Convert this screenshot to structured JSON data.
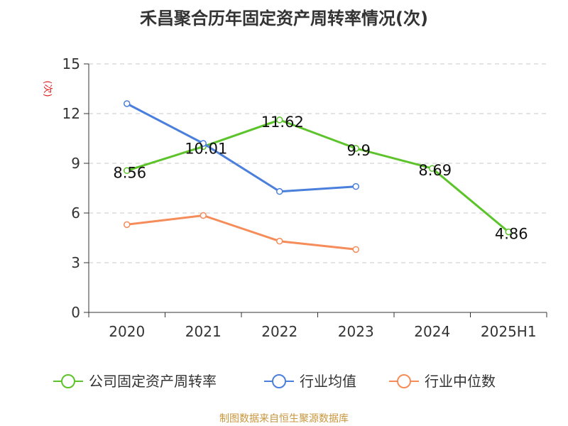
{
  "chart_data": {
    "type": "line",
    "title": "禾昌聚合历年固定资产周转率情况(次)",
    "ylabel": "(次)",
    "xlabel": "",
    "ylim": [
      0,
      15
    ],
    "yticks": [
      0,
      3,
      6,
      9,
      12,
      15
    ],
    "categories": [
      "2020",
      "2021",
      "2022",
      "2023",
      "2024",
      "2025H1"
    ],
    "grid": true,
    "legend_position": "bottom",
    "series": [
      {
        "name": "公司固定资产周转率",
        "color": "#5cc42a",
        "values": [
          8.56,
          10.01,
          11.62,
          9.9,
          8.69,
          4.86
        ],
        "labels": [
          "8.56",
          "10.01",
          "11.62",
          "9.9",
          "8.69",
          "4.86"
        ],
        "show_labels": true
      },
      {
        "name": "行业均值",
        "color": "#4a7fdc",
        "values": [
          12.6,
          10.2,
          7.3,
          7.6,
          null,
          null
        ],
        "show_labels": false
      },
      {
        "name": "行业中位数",
        "color": "#f58c5a",
        "values": [
          5.3,
          5.85,
          4.3,
          3.8,
          null,
          null
        ],
        "show_labels": false
      }
    ]
  },
  "source": "制图数据来自恒生聚源数据库"
}
